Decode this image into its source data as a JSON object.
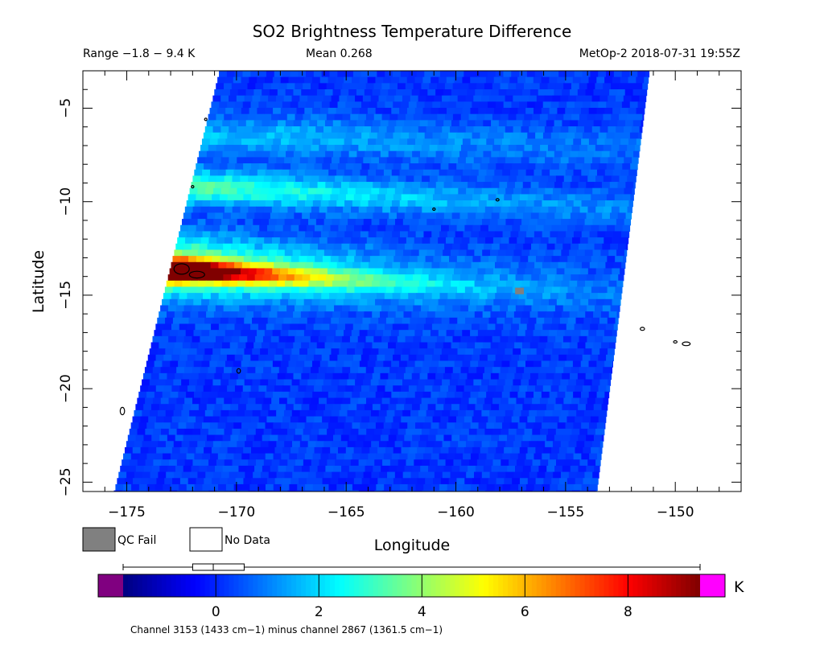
{
  "header": {
    "title": "SO2 Brightness Temperature Difference",
    "range": "Range −1.8 − 9.4 K",
    "mean": "Mean 0.268",
    "platform": "MetOp-2 2018-07-31 19:55Z"
  },
  "chart_data": {
    "type": "heatmap",
    "title": "SO2 Brightness Temperature Difference",
    "xlabel": "Longitude",
    "ylabel": "Latitude",
    "xlim": [
      -177,
      -147
    ],
    "ylim": [
      -25.5,
      -3
    ],
    "xticks": [
      -175,
      -170,
      -165,
      -160,
      -155,
      -150
    ],
    "yticks": [
      -5,
      -10,
      -15,
      -20,
      -25
    ],
    "xtick_labels": [
      "−175",
      "−170",
      "−165",
      "−160",
      "−155",
      "−150"
    ],
    "ytick_labels": [
      "−5",
      "−10",
      "−15",
      "−20",
      "−25"
    ],
    "units": "K",
    "value_range": [
      -1.8,
      9.4
    ],
    "mean": 0.268,
    "swath": {
      "top_lat": -3,
      "bottom_lat": -25.5,
      "west_lon_top": -170.8,
      "west_lon_bottom": -175.6,
      "east_lon_top": -151.2,
      "east_lon_bottom": -153.6
    },
    "background_value": 0.2,
    "bands": [
      {
        "lon_west": -172,
        "lat_center": -13.7,
        "slope": -0.07,
        "half_width": 0.55,
        "peak": 9.0,
        "lon_decay": 5
      },
      {
        "lon_west": -172,
        "lat_center": -13.5,
        "slope": -0.07,
        "half_width": 1.6,
        "peak": 4.2,
        "lon_decay": 9
      },
      {
        "lon_west": -172,
        "lat_center": -9.2,
        "slope": -0.06,
        "half_width": 0.9,
        "peak": 3.3,
        "lon_decay": 14
      },
      {
        "lon_west": -168,
        "lat_center": -6.5,
        "slope": -0.05,
        "half_width": 1.1,
        "peak": 1.4,
        "lon_decay": 20
      }
    ],
    "colorbar": {
      "min": -1.8,
      "max": 9.4,
      "ticks": [
        0,
        2,
        4,
        6,
        8
      ],
      "tick_labels": [
        "0",
        "2",
        "4",
        "6",
        "8"
      ],
      "unit_label": "K",
      "under_color": "#800080",
      "over_color": "#ff00ff",
      "box_whisker": {
        "min": -1.8,
        "q1": -0.45,
        "median": -0.05,
        "q3": 0.55,
        "max": 9.4
      }
    },
    "legend": [
      {
        "label": "QC Fail",
        "color": "#808080"
      },
      {
        "label": "No Data",
        "color": "#ffffff"
      }
    ],
    "colors": {
      "qc_fail": "#808080",
      "no_data": "#ffffff",
      "coastline": "#000000"
    }
  },
  "footer": {
    "channel_note": "Channel 3153 (1433 cm−1) minus channel 2867 (1361.5 cm−1)"
  }
}
